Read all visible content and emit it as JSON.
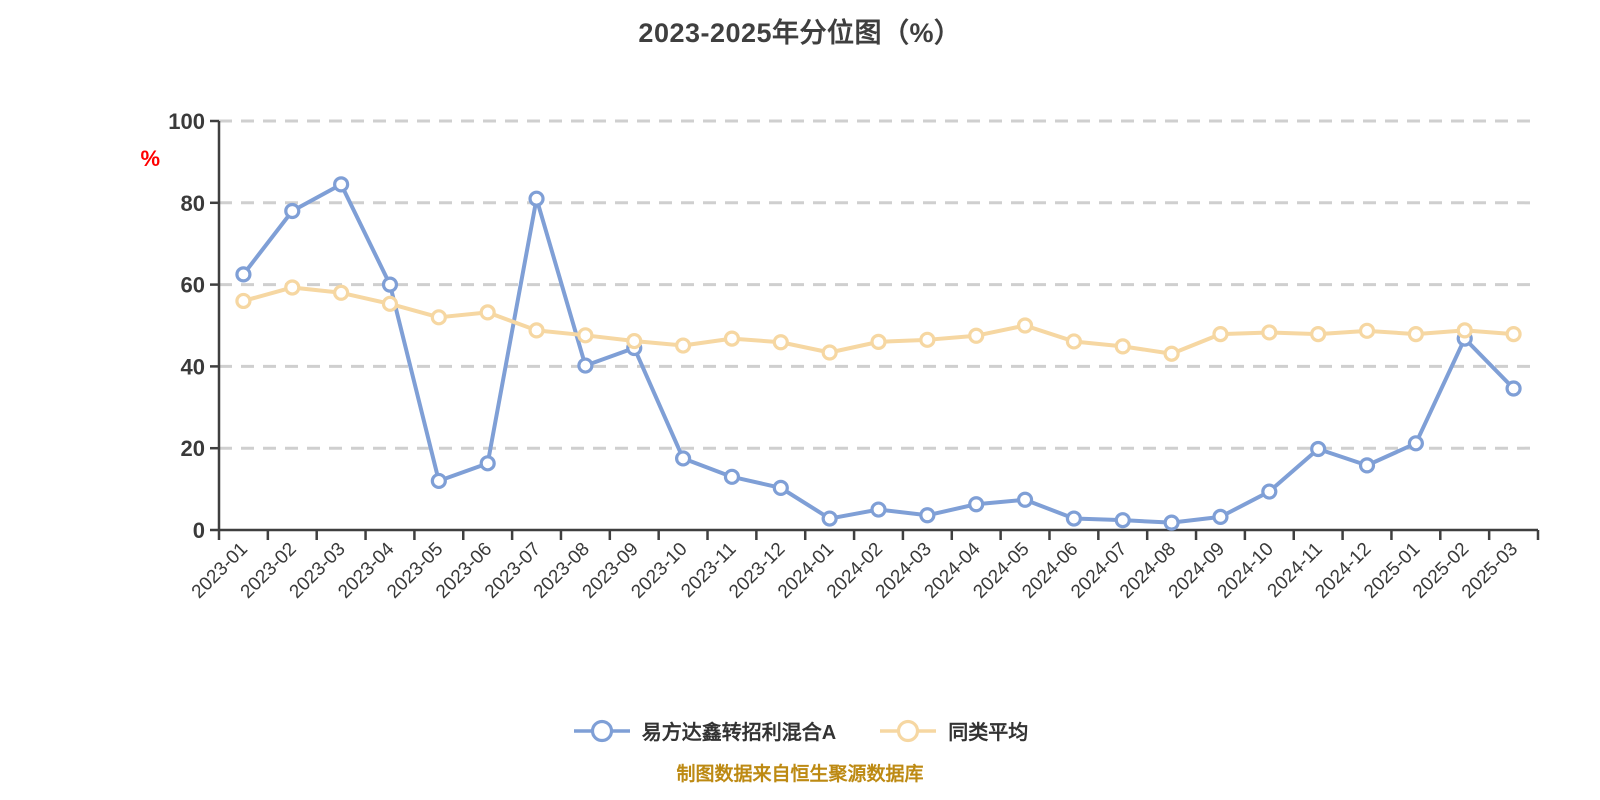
{
  "title": "2023-2025年分位图（%）",
  "caption": "制图数据来自恒生聚源数据库",
  "y_axis": {
    "name": "%",
    "name_color": "#ff0000",
    "ticks": [
      0,
      20,
      40,
      60,
      80,
      100
    ]
  },
  "colors": {
    "axis_line": "#3f3f3f",
    "grid_line": "#cfcfcf",
    "tick_label": "#3a3a3a",
    "background": "#ffffff"
  },
  "chart_data": {
    "type": "line",
    "title": "2023-2025年分位图（%）",
    "xlabel": "",
    "ylabel": "%",
    "ylim": [
      0,
      100
    ],
    "grid": "horizontal-dashed",
    "legend_position": "bottom",
    "categories": [
      "2023-01",
      "2023-02",
      "2023-03",
      "2023-04",
      "2023-05",
      "2023-06",
      "2023-07",
      "2023-08",
      "2023-09",
      "2023-10",
      "2023-11",
      "2023-12",
      "2024-01",
      "2024-02",
      "2024-03",
      "2024-04",
      "2024-05",
      "2024-06",
      "2024-07",
      "2024-08",
      "2024-09",
      "2024-10",
      "2024-11",
      "2024-12",
      "2025-01",
      "2025-02",
      "2025-03"
    ],
    "series": [
      {
        "name": "易方达鑫转招利混合A",
        "color": "#7f9fd6",
        "marker_fill": "#ffffff",
        "values": [
          62.5,
          78,
          84.5,
          60,
          12,
          16.3,
          81,
          40.2,
          44.5,
          17.5,
          13,
          10.3,
          2.8,
          5,
          3.6,
          6.3,
          7.4,
          2.8,
          2.4,
          1.8,
          3.2,
          9.4,
          19.8,
          15.8,
          21.2,
          46.8,
          34.6
        ]
      },
      {
        "name": "同类平均",
        "color": "#f6d7a2",
        "marker_fill": "#ffffff",
        "values": [
          56,
          59.3,
          58,
          55.3,
          52,
          53.2,
          48.8,
          47.6,
          46.2,
          45.1,
          46.8,
          45.9,
          43.4,
          46,
          46.5,
          47.5,
          50,
          46.1,
          44.9,
          43.1,
          47.9,
          48.3,
          47.9,
          48.7,
          47.9,
          48.8,
          47.9
        ]
      }
    ]
  }
}
